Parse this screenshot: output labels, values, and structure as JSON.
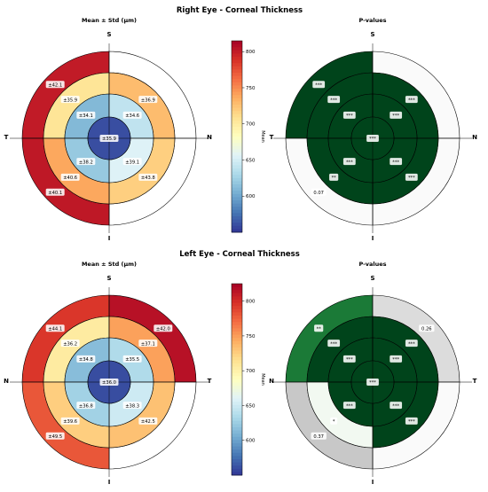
{
  "colors": {
    "pvalue_strong": "#00441b",
    "pvalue_mid": "#1b7a37",
    "pvalue_light": "#f2f9f1",
    "pvalue_gray": "#dcdcdc",
    "pvalue_gray_dark": "#c8c8c8",
    "pvalue_white": "#fafafa",
    "label_box": "#ffffff"
  },
  "colorbar": {
    "label": "Mean",
    "stops": [
      "#313695",
      "#4575b4",
      "#74add1",
      "#abd9e9",
      "#e0f3f8",
      "#ffffbf",
      "#fee090",
      "#fdae61",
      "#f46d43",
      "#d73027",
      "#a50026"
    ]
  },
  "chart_data": [
    {
      "type": "heatmap",
      "panel": "right-eye-mean",
      "suptitle": "Right Eye - Corneal Thickness",
      "title": "Mean ± Std (μm)",
      "orientation": {
        "top": "S",
        "bottom": "I",
        "left": "T",
        "right": "N"
      },
      "colorbar": {
        "vmin": 550,
        "vmax": 815,
        "ticks": [
          600,
          650,
          700,
          750,
          800
        ],
        "label": "Mean"
      },
      "center": {
        "value": 560,
        "std": "±35.9"
      },
      "rings": [
        {
          "name": "inner",
          "sectors": [
            {
              "pos": "upper-left",
              "value": 610,
              "std": "±34.1"
            },
            {
              "pos": "upper-right",
              "value": 640,
              "std": "±34.6"
            },
            {
              "pos": "lower-right",
              "value": 655,
              "std": "±39.1"
            },
            {
              "pos": "lower-left",
              "value": 620,
              "std": "±38.2"
            }
          ]
        },
        {
          "name": "middle",
          "sectors": [
            {
              "pos": "upper-left",
              "value": 705,
              "std": "±35.9"
            },
            {
              "pos": "upper-right",
              "value": 728,
              "std": "±36.9"
            },
            {
              "pos": "lower-right",
              "value": 718,
              "std": "±43.8"
            },
            {
              "pos": "lower-left",
              "value": 738,
              "std": "±40.6"
            }
          ]
        },
        {
          "name": "outer",
          "sectors": [
            {
              "pos": "upper-left",
              "value": 800,
              "std": "±42.1"
            },
            {
              "pos": "upper-right",
              "value": null,
              "std": ""
            },
            {
              "pos": "lower-right",
              "value": null,
              "std": ""
            },
            {
              "pos": "lower-left",
              "value": 802,
              "std": "±40.1"
            }
          ]
        }
      ]
    },
    {
      "type": "heatmap",
      "panel": "right-eye-pvalues",
      "title": "P-values",
      "orientation": {
        "top": "S",
        "bottom": "I",
        "left": "T",
        "right": "N"
      },
      "center": {
        "level": "strong",
        "label": "***"
      },
      "rings": [
        {
          "name": "inner",
          "sectors": [
            {
              "pos": "upper-left",
              "level": "strong",
              "label": "***"
            },
            {
              "pos": "upper-right",
              "level": "strong",
              "label": "***"
            },
            {
              "pos": "lower-right",
              "level": "strong",
              "label": "***"
            },
            {
              "pos": "lower-left",
              "level": "strong",
              "label": "***"
            }
          ]
        },
        {
          "name": "middle",
          "sectors": [
            {
              "pos": "upper-left",
              "level": "strong",
              "label": "***"
            },
            {
              "pos": "upper-right",
              "level": "strong",
              "label": "***"
            },
            {
              "pos": "lower-right",
              "level": "strong",
              "label": "***"
            },
            {
              "pos": "lower-left",
              "level": "strong",
              "label": "**"
            }
          ]
        },
        {
          "name": "outer",
          "sectors": [
            {
              "pos": "upper-left",
              "level": "strong",
              "label": "***"
            },
            {
              "pos": "upper-right",
              "level": "white",
              "label": ""
            },
            {
              "pos": "lower-right",
              "level": "white",
              "label": ""
            },
            {
              "pos": "lower-left",
              "level": "white",
              "label": "0.07"
            }
          ]
        }
      ]
    },
    {
      "type": "heatmap",
      "panel": "left-eye-mean",
      "suptitle": "Left Eye - Corneal Thickness",
      "title": "Mean ± Std (μm)",
      "orientation": {
        "top": "S",
        "bottom": "I",
        "left": "N",
        "right": "T"
      },
      "colorbar": {
        "vmin": 550,
        "vmax": 825,
        "ticks": [
          600,
          650,
          700,
          750,
          800
        ],
        "label": "Mean"
      },
      "center": {
        "value": 560,
        "std": "±36.0"
      },
      "rings": [
        {
          "name": "inner",
          "sectors": [
            {
              "pos": "upper-left",
              "value": 615,
              "std": "±34.8"
            },
            {
              "pos": "upper-right",
              "value": 635,
              "std": "±35.5"
            },
            {
              "pos": "lower-right",
              "value": 650,
              "std": "±38.3"
            },
            {
              "pos": "lower-left",
              "value": 628,
              "std": "±36.8"
            }
          ]
        },
        {
          "name": "middle",
          "sectors": [
            {
              "pos": "upper-left",
              "value": 705,
              "std": "±36.2"
            },
            {
              "pos": "upper-right",
              "value": 748,
              "std": "±37.1"
            },
            {
              "pos": "lower-right",
              "value": 732,
              "std": "±42.5"
            },
            {
              "pos": "lower-left",
              "value": 725,
              "std": "±39.6"
            }
          ]
        },
        {
          "name": "outer",
          "sectors": [
            {
              "pos": "upper-left",
              "value": 795,
              "std": "±44.1"
            },
            {
              "pos": "upper-right",
              "value": 815,
              "std": "±42.0"
            },
            {
              "pos": "lower-right",
              "value": null,
              "std": ""
            },
            {
              "pos": "lower-left",
              "value": 780,
              "std": "±49.5"
            }
          ]
        }
      ]
    },
    {
      "type": "heatmap",
      "panel": "left-eye-pvalues",
      "title": "P-values",
      "orientation": {
        "top": "S",
        "bottom": "I",
        "left": "N",
        "right": "T"
      },
      "center": {
        "level": "strong",
        "label": "***"
      },
      "rings": [
        {
          "name": "inner",
          "sectors": [
            {
              "pos": "upper-left",
              "level": "strong",
              "label": "***"
            },
            {
              "pos": "upper-right",
              "level": "strong",
              "label": "***"
            },
            {
              "pos": "lower-right",
              "level": "strong",
              "label": "***"
            },
            {
              "pos": "lower-left",
              "level": "strong",
              "label": "***"
            }
          ]
        },
        {
          "name": "middle",
          "sectors": [
            {
              "pos": "upper-left",
              "level": "strong",
              "label": "***"
            },
            {
              "pos": "upper-right",
              "level": "strong",
              "label": "***"
            },
            {
              "pos": "lower-right",
              "level": "strong",
              "label": "***"
            },
            {
              "pos": "lower-left",
              "level": "light",
              "label": "*"
            }
          ]
        },
        {
          "name": "outer",
          "sectors": [
            {
              "pos": "upper-left",
              "level": "mid",
              "label": "**"
            },
            {
              "pos": "upper-right",
              "level": "gray",
              "label": "0.26"
            },
            {
              "pos": "lower-right",
              "level": "white",
              "label": ""
            },
            {
              "pos": "lower-left",
              "level": "gray_dark",
              "label": "0.37"
            }
          ]
        }
      ]
    }
  ]
}
